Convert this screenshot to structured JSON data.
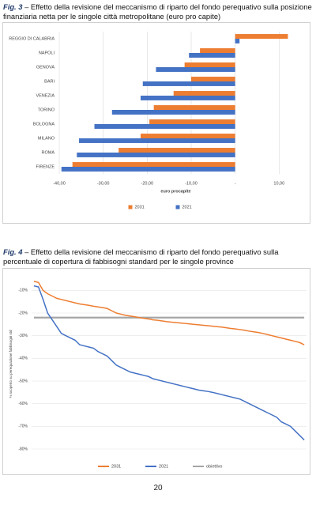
{
  "figures": [
    {
      "label": "Fig. 3",
      "text": "– Effetto della revisione del meccanismo di riparto del fondo perequativo sulla posizione finanziaria netta per le singole città metropolitane (euro pro capite)"
    },
    {
      "label": "Fig. 4",
      "text": "– Effetto della revisione del meccanismo di riparto del fondo perequativo sulla percentuale di copertura di fabbisogni standard per le singole province"
    }
  ],
  "chart_data": [
    {
      "type": "bar",
      "orientation": "horizontal",
      "categories": [
        "REGGIO DI CALABRIA",
        "NAPOLI",
        "GENOVA",
        "BARI",
        "VENEZIA",
        "TORINO",
        "BOLOGNA",
        "MILANO",
        "ROMA",
        "FIRENZE"
      ],
      "series": [
        {
          "name": "2031",
          "color": "#ed7d31",
          "values": [
            12,
            -8,
            -11.5,
            -10,
            -14,
            -18.5,
            -19.5,
            -21.5,
            -26.5,
            -37
          ]
        },
        {
          "name": "2021",
          "color": "#4472c4",
          "values": [
            1,
            -10.5,
            -18,
            -21,
            -21.5,
            -28,
            -32,
            -35.5,
            -36,
            -39.5
          ]
        }
      ],
      "x_label": "euro procapite",
      "xlim": [
        -40,
        13
      ],
      "xticks": [
        {
          "value": -40,
          "label": "-40,00"
        },
        {
          "value": -30,
          "label": "-30,00"
        },
        {
          "value": -20,
          "label": "-20,00"
        },
        {
          "value": -10,
          "label": "-10,00"
        },
        {
          "value": 0,
          "label": "-"
        },
        {
          "value": 10,
          "label": "10,00"
        }
      ],
      "grid": true,
      "legend": "bottom"
    },
    {
      "type": "line",
      "categories": [
        null,
        null,
        null,
        null,
        null,
        null,
        null,
        null,
        null,
        null,
        null,
        null,
        null,
        null,
        null,
        null,
        null,
        null,
        null,
        null,
        null,
        null,
        null,
        null,
        null,
        null,
        null,
        null,
        null,
        null,
        null,
        null,
        null,
        null,
        null,
        null,
        null,
        null,
        null,
        null,
        null,
        null,
        null,
        null,
        null,
        null,
        null,
        null,
        null,
        null,
        null,
        null,
        null,
        null,
        null,
        null,
        null,
        null,
        null,
        null
      ],
      "series": [
        {
          "name": "2031",
          "color": "#ed7d31",
          "values": [
            -6,
            -6.5,
            -10,
            -11.5,
            -12.5,
            -13.5,
            -14,
            -14.5,
            -15,
            -15.5,
            -16,
            -16.3,
            -16.6,
            -17,
            -17.3,
            -17.6,
            -18,
            -19,
            -20,
            -20.5,
            -21,
            -21.3,
            -21.6,
            -22,
            -22.3,
            -22.6,
            -23,
            -23.2,
            -23.5,
            -23.8,
            -24,
            -24.2,
            -24.4,
            -24.6,
            -24.8,
            -25,
            -25.2,
            -25.4,
            -25.6,
            -25.8,
            -26,
            -26.2,
            -26.5,
            -26.8,
            -27,
            -27.3,
            -27.6,
            -28,
            -28.3,
            -28.6,
            -29,
            -29.5,
            -30,
            -30.5,
            -31,
            -31.5,
            -32,
            -32.5,
            -33,
            -34
          ]
        },
        {
          "name": "2021",
          "color": "#4472c4",
          "values": [
            -8,
            -8.5,
            -14,
            -20,
            -23,
            -26,
            -29,
            -30,
            -31,
            -32,
            -34,
            -34.5,
            -35,
            -35.5,
            -37,
            -38,
            -39,
            -41,
            -43,
            -44,
            -45,
            -46,
            -46.5,
            -47,
            -47.5,
            -48,
            -49,
            -49.5,
            -50,
            -50.5,
            -51,
            -51.5,
            -52,
            -52.5,
            -53,
            -53.5,
            -54,
            -54.3,
            -54.6,
            -55,
            -55.5,
            -56,
            -56.5,
            -57,
            -57.5,
            -58,
            -59,
            -60,
            -61,
            -62,
            -63,
            -64,
            -65,
            -66,
            -68,
            -69,
            -70,
            -72,
            -74,
            -76
          ]
        },
        {
          "name": "obiettivo",
          "color": "#a5a5a5",
          "values": [
            -22,
            -22,
            -22,
            -22,
            -22,
            -22,
            -22,
            -22,
            -22,
            -22,
            -22,
            -22,
            -22,
            -22,
            -22,
            -22,
            -22,
            -22,
            -22,
            -22,
            -22,
            -22,
            -22,
            -22,
            -22,
            -22,
            -22,
            -22,
            -22,
            -22,
            -22,
            -22,
            -22,
            -22,
            -22,
            -22,
            -22,
            -22,
            -22,
            -22,
            -22,
            -22,
            -22,
            -22,
            -22,
            -22,
            -22,
            -22,
            -22,
            -22,
            -22,
            -22,
            -22,
            -22,
            -22,
            -22,
            -22,
            -22,
            -22,
            -22
          ]
        }
      ],
      "y_label": "% scoperto su perequazione fabbisogni std",
      "ylim": [
        -80,
        -5
      ],
      "yticks": [
        {
          "value": -80,
          "label": "-80%"
        },
        {
          "value": -70,
          "label": "-70%"
        },
        {
          "value": -60,
          "label": "-60%"
        },
        {
          "value": -50,
          "label": "-50%"
        },
        {
          "value": -40,
          "label": "-40%"
        },
        {
          "value": -30,
          "label": "-30%"
        },
        {
          "value": -20,
          "label": "-20%"
        },
        {
          "value": -10,
          "label": "-10%"
        }
      ],
      "grid": true,
      "legend": "bottom"
    }
  ],
  "page_number": "20"
}
